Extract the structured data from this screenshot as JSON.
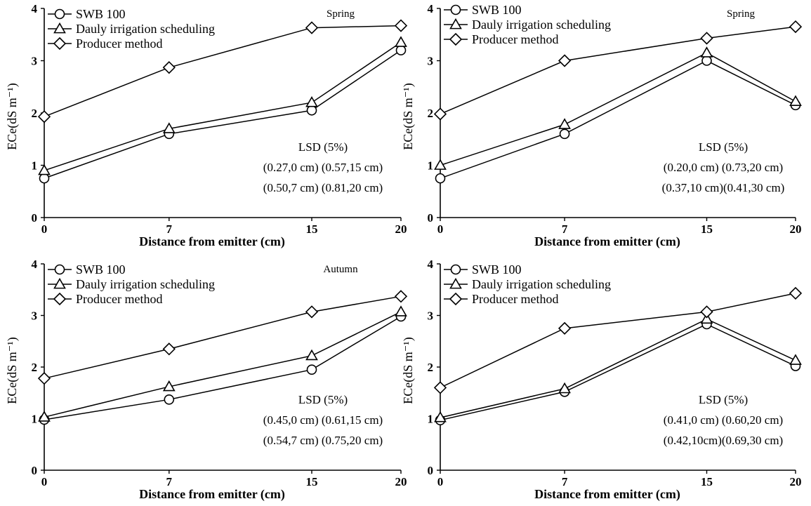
{
  "chart_data": [
    {
      "type": "line",
      "season": "Spring",
      "xlabel": "Distance from emitter (cm)",
      "ylabel": "ECe(dS m⁻¹)",
      "xlim": [
        0,
        20
      ],
      "ylim": [
        0,
        4
      ],
      "xticks": [
        "0",
        "7",
        "15",
        "20"
      ],
      "yticks": [
        "0",
        "1",
        "2",
        "3",
        "4"
      ],
      "x": [
        0,
        7,
        15,
        20
      ],
      "series": [
        {
          "name": "SWB 100",
          "marker": "circle",
          "values": [
            0.75,
            1.6,
            2.05,
            3.2
          ]
        },
        {
          "name": "Dauly irrigation scheduling",
          "marker": "triangle",
          "values": [
            0.9,
            1.7,
            2.2,
            3.35
          ]
        },
        {
          "name": "Producer method",
          "marker": "diamond",
          "values": [
            1.93,
            2.87,
            3.63,
            3.67
          ]
        }
      ],
      "lsd_title": "LSD (5%)",
      "lsd_lines": [
        "(0.27,0 cm) (0.57,15 cm)",
        "(0.50,7 cm) (0.81,20 cm)"
      ]
    },
    {
      "type": "line",
      "season": "Spring",
      "xlabel": "Distance from emitter (cm)",
      "ylabel": "ECe(dS m⁻¹)",
      "xlim": [
        0,
        20
      ],
      "ylim": [
        0,
        4
      ],
      "xticks": [
        "0",
        "7",
        "15",
        "20"
      ],
      "yticks": [
        "0",
        "1",
        "2",
        "3",
        "4"
      ],
      "x": [
        0,
        7,
        15,
        20
      ],
      "series": [
        {
          "name": "SWB 100",
          "marker": "circle",
          "values": [
            0.75,
            1.6,
            3.0,
            2.15
          ]
        },
        {
          "name": "Dauly irrigation scheduling",
          "marker": "triangle",
          "values": [
            1.0,
            1.78,
            3.15,
            2.22
          ]
        },
        {
          "name": "Producer method",
          "marker": "diamond",
          "values": [
            1.98,
            3.0,
            3.43,
            3.65
          ]
        }
      ],
      "lsd_title": "LSD (5%)",
      "lsd_lines": [
        "(0.20,0 cm) (0.73,20 cm)",
        "(0.37,10 cm)(0.41,30 cm)"
      ]
    },
    {
      "type": "line",
      "season": "Autumn",
      "xlabel": "Distance from emitter (cm)",
      "ylabel": "ECe(dS m⁻¹)",
      "xlim": [
        0,
        20
      ],
      "ylim": [
        0,
        4
      ],
      "xticks": [
        "0",
        "7",
        "15",
        "20"
      ],
      "yticks": [
        "0",
        "1",
        "2",
        "3",
        "4"
      ],
      "x": [
        0,
        7,
        15,
        20
      ],
      "series": [
        {
          "name": "SWB 100",
          "marker": "circle",
          "values": [
            0.98,
            1.37,
            1.95,
            2.98
          ]
        },
        {
          "name": "Dauly irrigation scheduling",
          "marker": "triangle",
          "values": [
            1.03,
            1.62,
            2.22,
            3.07
          ]
        },
        {
          "name": "Producer method",
          "marker": "diamond",
          "values": [
            1.78,
            2.35,
            3.07,
            3.37
          ]
        }
      ],
      "lsd_title": "LSD (5%)",
      "lsd_lines": [
        "(0.45,0 cm) (0.61,15 cm)",
        "(0.54,7 cm) (0.75,20 cm)"
      ]
    },
    {
      "type": "line",
      "season": "",
      "xlabel": "Distance from emitter (cm)",
      "ylabel": "ECe(dS m⁻¹)",
      "xlim": [
        0,
        20
      ],
      "ylim": [
        0,
        4
      ],
      "xticks": [
        "0",
        "7",
        "15",
        "20"
      ],
      "yticks": [
        "0",
        "1",
        "2",
        "3",
        "4"
      ],
      "x": [
        0,
        7,
        15,
        20
      ],
      "series": [
        {
          "name": "SWB 100",
          "marker": "circle",
          "values": [
            0.97,
            1.52,
            2.83,
            2.02
          ]
        },
        {
          "name": "Dauly irrigation scheduling",
          "marker": "triangle",
          "values": [
            1.02,
            1.58,
            2.93,
            2.13
          ]
        },
        {
          "name": "Producer method",
          "marker": "diamond",
          "values": [
            1.6,
            2.75,
            3.07,
            3.43
          ]
        }
      ],
      "lsd_title": "LSD (5%)",
      "lsd_lines": [
        "(0.41,0 cm) (0.60,20 cm)",
        "(0.42,10cm)(0.69,30 cm)"
      ]
    }
  ]
}
